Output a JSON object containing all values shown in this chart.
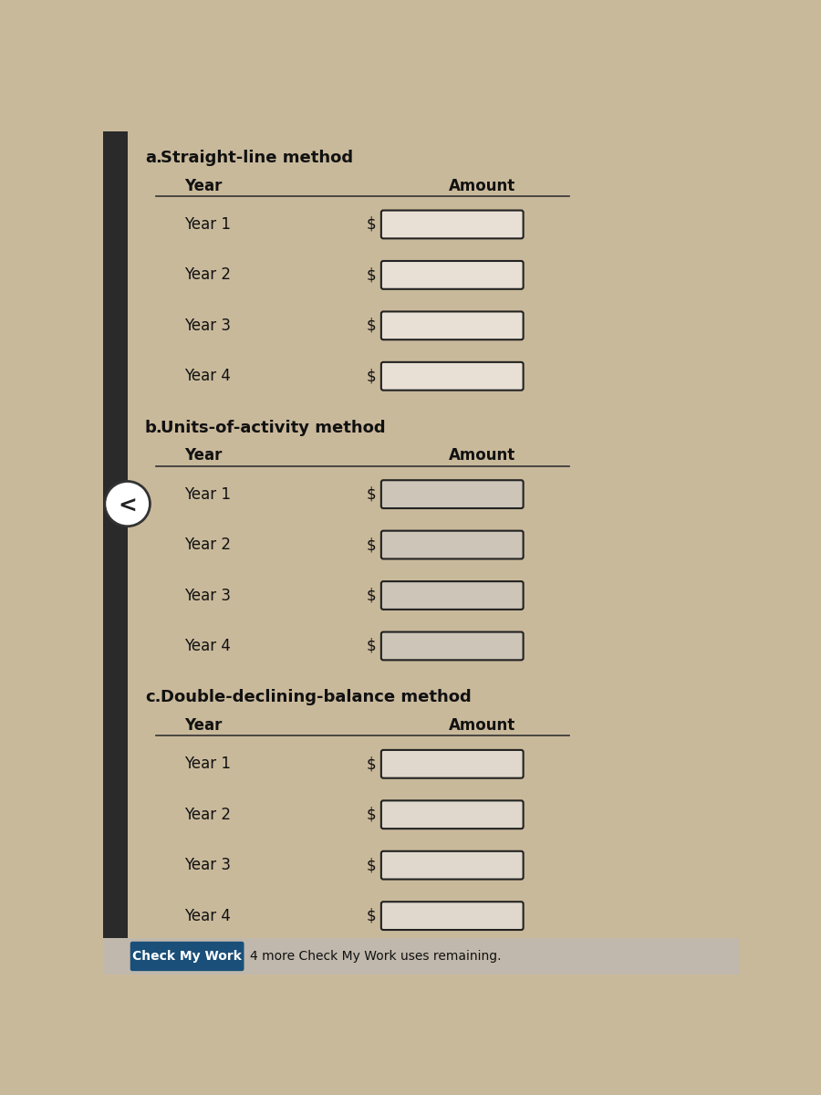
{
  "bg_color": "#c9b99b",
  "sections": [
    {
      "label": "a.",
      "title": "Straight-line method",
      "header_year": "Year",
      "header_amount": "Amount",
      "rows": [
        "Year 1",
        "Year 2",
        "Year 3",
        "Year 4"
      ],
      "input_bg": "#e8e0d4",
      "input_border": "#222222"
    },
    {
      "label": "b.",
      "title": "Units-of-activity method",
      "header_year": "Year",
      "header_amount": "Amount",
      "rows": [
        "Year 1",
        "Year 2",
        "Year 3",
        "Year 4"
      ],
      "input_bg": "#cdc5b8",
      "input_border": "#222222"
    },
    {
      "label": "c.",
      "title": "Double-declining-balance method",
      "header_year": "Year",
      "header_amount": "Amount",
      "rows": [
        "Year 1",
        "Year 2",
        "Year 3",
        "Year 4"
      ],
      "input_bg": "#e0d8cc",
      "input_border": "#222222"
    }
  ],
  "button_color": "#1a4f7a",
  "button_text": "Check My Work",
  "footer_text": "4 more Check My Work uses remaining.",
  "footer_bg": "#c0b8ac",
  "nav_symbol": "<",
  "nav_circle_color": "#ffffff",
  "nav_border_color": "#333333"
}
